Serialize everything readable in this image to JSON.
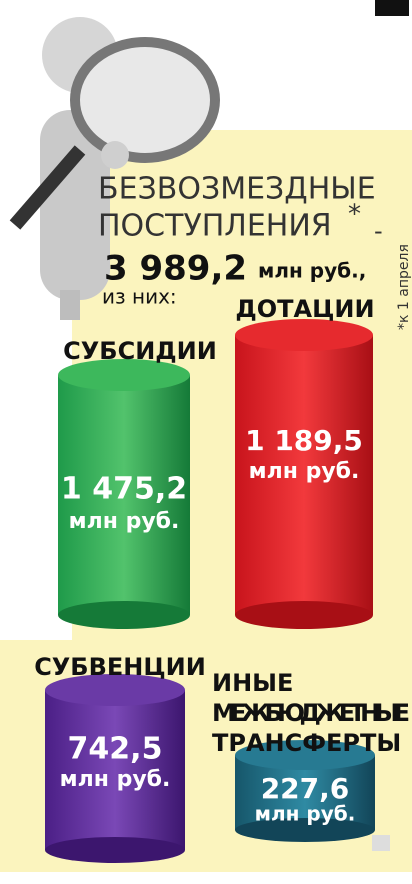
{
  "header": {
    "title_lines": [
      "БЕЗВОЗМЕЗДНЫЕ",
      "ПОСТУПЛЕНИЯ"
    ],
    "title_mark": "*",
    "dash": "-",
    "total": "3 989,2",
    "total_unit": "млн руб.,",
    "of_them": "из них:",
    "footnote": "*к 1 апреля"
  },
  "items": [
    {
      "label": [
        "СУБСИДИИ"
      ],
      "value": "1 475,2",
      "unit": "млн руб."
    },
    {
      "label": [
        "ДОТАЦИИ"
      ],
      "value": "1 189,5",
      "unit": "млн руб."
    },
    {
      "label": [
        "СУБВЕНЦИИ"
      ],
      "value": "742,5",
      "unit": "млн руб."
    },
    {
      "label": [
        "ИНЫЕ",
        "МЕЖБЮДЖЕТНЫЕ",
        "ТРАНСФЕРТЫ"
      ],
      "value": "227,6",
      "unit": "млн руб."
    }
  ]
}
